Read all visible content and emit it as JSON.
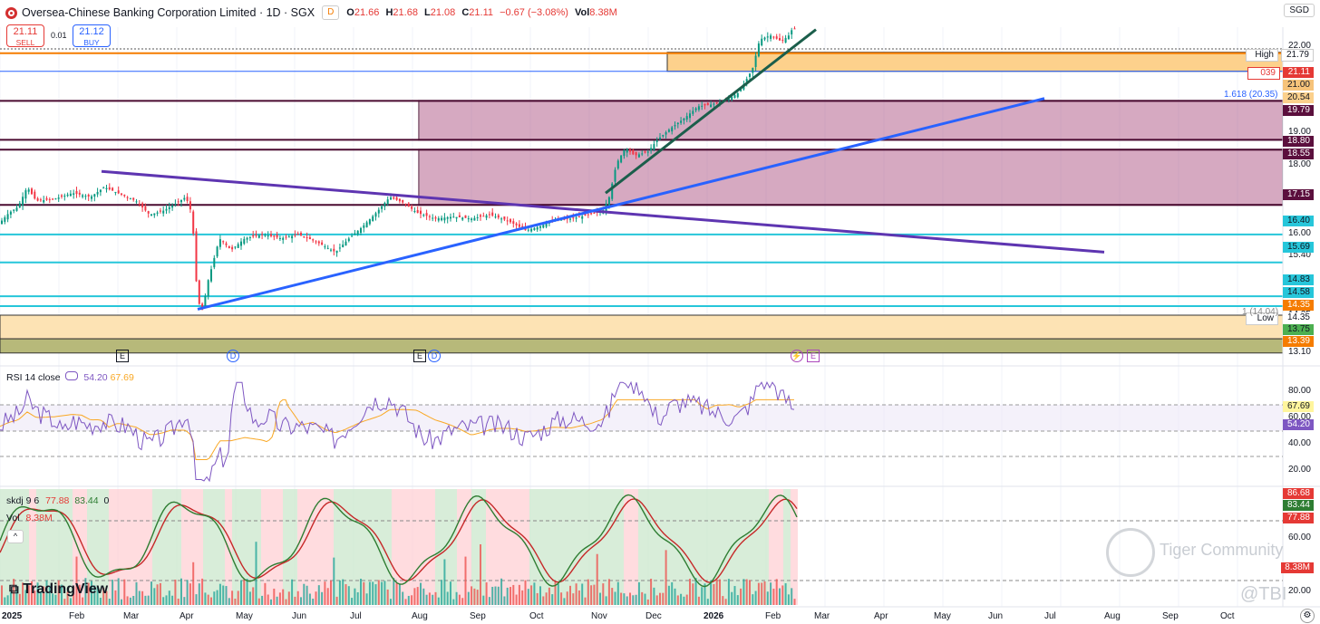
{
  "header": {
    "title": "Oversea-Chinese Banking Corporation Limited · 1D · SGX",
    "badge": "D",
    "ohlc": [
      {
        "k": "O",
        "v": "21.66"
      },
      {
        "k": "H",
        "v": "21.68"
      },
      {
        "k": "L",
        "v": "21.08"
      },
      {
        "k": "C",
        "v": "21.11"
      }
    ],
    "change": "−0.67 (−3.08%)",
    "vol_label": "Vol",
    "vol_value": "8.38M",
    "currency": "SGD"
  },
  "trade": {
    "sell_price": "21.11",
    "sell_label": "SELL",
    "spread": "0.01",
    "buy_price": "21.12",
    "buy_label": "BUY"
  },
  "price_axis": {
    "scale_labels": [
      "22.00",
      "19.00",
      "18.00",
      "16.00",
      "15.40",
      "14.35",
      "13.10"
    ],
    "tags": {
      "high_label": "High",
      "high": "21.79",
      "timer": "039",
      "close": "21.11",
      "t2100": "21.00",
      "t2054": "20.54",
      "t1979": "19.79",
      "t1880": "18.80",
      "t1855": "18.55",
      "t1715": "17.15",
      "t1640": "16.40",
      "t1569": "15.69",
      "t1483": "14.83",
      "t1458": "14.58",
      "t1435": "14.35",
      "low_label": "Low",
      "t1375": "13.75",
      "t1339": "13.39"
    },
    "fib_top": "1.618 (20.35)",
    "fib_low": "1 (14.04)"
  },
  "events": {
    "earnings": "E",
    "dividend": "D"
  },
  "rsi": {
    "label": "RSI 14 close",
    "v1": "54.20",
    "v2": "67.69",
    "axis": [
      "80.00",
      "60.00",
      "40.00",
      "20.00"
    ],
    "tag1": "67.69",
    "tag2": "54.20"
  },
  "skdj": {
    "label": "skdj 9 6",
    "v1": "77.88",
    "v2": "83.44",
    "v3": "0",
    "vol_label": "Vol",
    "vol_value": "8.38M",
    "axis": [
      "60.00",
      "20.00"
    ],
    "tags": [
      "86.68",
      "83.44",
      "77.88",
      "8.38M"
    ]
  },
  "time_axis": [
    "2025",
    "Feb",
    "Mar",
    "Apr",
    "May",
    "Jun",
    "Jul",
    "Aug",
    "Sep",
    "Oct",
    "Nov",
    "Dec",
    "2026",
    "Feb",
    "Mar",
    "Apr",
    "May",
    "Jun",
    "Jul",
    "Aug",
    "Sep",
    "Oct"
  ],
  "watermarks": {
    "brand": "TradingView",
    "community": "Tiger Community",
    "handle": "@TBI"
  },
  "chart_data": {
    "type": "candlestick",
    "symbol": "OCBC SGX 1D",
    "last": {
      "open": 21.66,
      "high": 21.68,
      "low": 21.08,
      "close": 21.11
    },
    "price_path": [
      [
        0,
        16.7
      ],
      [
        10,
        16.95
      ],
      [
        20,
        17.1
      ],
      [
        30,
        17.6
      ],
      [
        40,
        17.25
      ],
      [
        60,
        17.3
      ],
      [
        80,
        17.45
      ],
      [
        100,
        17.35
      ],
      [
        115,
        17.6
      ],
      [
        130,
        17.45
      ],
      [
        150,
        17.25
      ],
      [
        165,
        16.9
      ],
      [
        180,
        17.0
      ],
      [
        195,
        17.2
      ],
      [
        205,
        17.35
      ],
      [
        212,
        16.9
      ],
      [
        216,
        15.3
      ],
      [
        220,
        14.6
      ],
      [
        224,
        14.45
      ],
      [
        228,
        15.1
      ],
      [
        234,
        15.6
      ],
      [
        242,
        16.3
      ],
      [
        255,
        16.0
      ],
      [
        270,
        16.3
      ],
      [
        290,
        16.4
      ],
      [
        310,
        16.3
      ],
      [
        330,
        16.4
      ],
      [
        350,
        16.2
      ],
      [
        370,
        15.95
      ],
      [
        385,
        16.3
      ],
      [
        400,
        16.6
      ],
      [
        415,
        16.95
      ],
      [
        430,
        17.35
      ],
      [
        445,
        17.2
      ],
      [
        460,
        16.95
      ],
      [
        480,
        16.8
      ],
      [
        500,
        16.85
      ],
      [
        520,
        16.8
      ],
      [
        540,
        16.9
      ],
      [
        560,
        16.75
      ],
      [
        580,
        16.5
      ],
      [
        595,
        16.6
      ],
      [
        610,
        16.75
      ],
      [
        630,
        16.8
      ],
      [
        650,
        16.9
      ],
      [
        665,
        17.0
      ],
      [
        672,
        17.35
      ],
      [
        680,
        18.2
      ],
      [
        690,
        18.6
      ],
      [
        700,
        18.4
      ],
      [
        715,
        18.5
      ],
      [
        725,
        18.8
      ],
      [
        740,
        19.1
      ],
      [
        755,
        19.35
      ],
      [
        770,
        19.65
      ],
      [
        785,
        19.7
      ],
      [
        800,
        19.8
      ],
      [
        815,
        20.0
      ],
      [
        830,
        20.6
      ],
      [
        838,
        21.35
      ],
      [
        850,
        21.45
      ],
      [
        862,
        21.3
      ],
      [
        870,
        21.45
      ],
      [
        876,
        21.7
      ],
      [
        880,
        21.11
      ]
    ],
    "drawings": {
      "resistance_line": [
        [
          112,
          18.0
        ],
        [
          1218,
          15.95
        ]
      ],
      "support_line": [
        [
          218,
          14.5
        ],
        [
          1152,
          19.85
        ]
      ],
      "short_trend": [
        [
          668,
          17.45
        ],
        [
          900,
          21.6
        ]
      ]
    }
  }
}
